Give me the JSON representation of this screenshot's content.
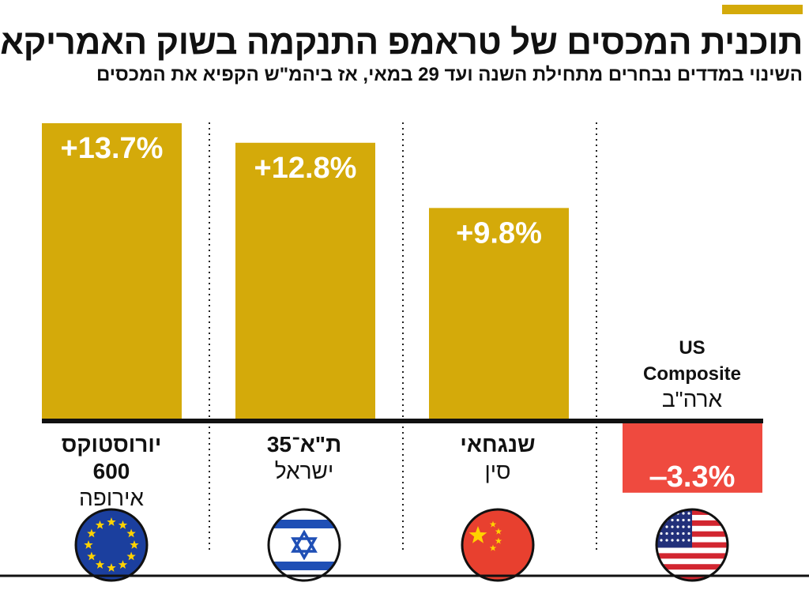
{
  "title": "תוכנית המכסים של טראמפ התנקמה בשוק האמריקאי",
  "subtitle": "השינוי במדדים נבחרים מתחילת השנה ועד 29 במאי, אז ביהמ\"ש הקפיא את המכסים",
  "colors": {
    "positive_bar": "#d4aa0a",
    "negative_bar": "#ef4a3f",
    "accent": "#d4aa0a",
    "value_text": "#ffffff",
    "label_text": "#111111"
  },
  "chart_data": {
    "type": "bar",
    "categories": [
      "יורוסטוקס 600",
      "ת\"א־35",
      "שנגחאי",
      "US Composite"
    ],
    "values": [
      13.7,
      12.8,
      9.8,
      -3.3
    ],
    "unit": "%",
    "data_labels": [
      "+13.7%",
      "+12.8%",
      "+9.8%",
      "‒3.3%"
    ],
    "groups": [
      {
        "name_lines": [
          "יורוסטוקס",
          "600"
        ],
        "region": "אירופה",
        "flag": "eu-flag-icon"
      },
      {
        "name_lines": [
          "ת\"א־35"
        ],
        "region": "ישראל",
        "flag": "israel-flag-icon"
      },
      {
        "name_lines": [
          "שנגחאי"
        ],
        "region": "סין",
        "flag": "china-flag-icon"
      },
      {
        "name_lines": [
          "US",
          "Composite"
        ],
        "region": "ארה\"ב",
        "flag": "usa-flag-icon"
      }
    ],
    "ylim": [
      -4,
      14
    ],
    "grid": "dotted vertical separators",
    "legend": "none"
  }
}
